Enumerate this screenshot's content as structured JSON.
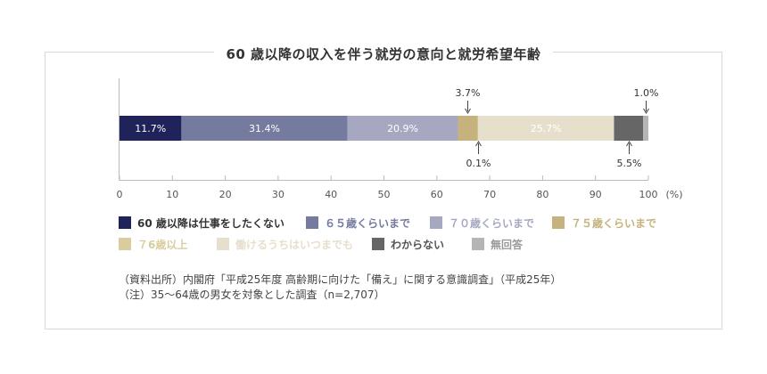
{
  "chart_data": {
    "type": "bar",
    "orientation": "horizontal-stacked-100",
    "title": "60 歳以降の収入を伴う就労の意向と就労希望年齢",
    "xlim": [
      0,
      100
    ],
    "x_ticks": [
      0,
      10,
      20,
      30,
      40,
      50,
      60,
      70,
      80,
      90,
      100
    ],
    "x_unit": "(%)",
    "series": [
      {
        "name": "60 歳以降は仕事をしたくない",
        "value": 11.7,
        "label": "11.7%",
        "color": "#20235a",
        "label_color": "#ffffff",
        "label_pos": "inside"
      },
      {
        "name": "６５歳くらいまで",
        "value": 31.4,
        "label": "31.4%",
        "color": "#757b9f",
        "label_color": "#ffffff",
        "label_pos": "inside"
      },
      {
        "name": "７０歳くらいまで",
        "value": 20.9,
        "label": "20.9%",
        "color": "#a6a8c2",
        "label_color": "#ffffff",
        "label_pos": "inside"
      },
      {
        "name": "７５歳くらいまで",
        "value": 3.7,
        "label": "3.7%",
        "color": "#c5b27c",
        "label_color": "#333333",
        "label_pos": "above"
      },
      {
        "name": "７6歳以上",
        "value": 0.1,
        "label": "0.1%",
        "color": "#d9cda0",
        "label_color": "#333333",
        "label_pos": "below"
      },
      {
        "name": "働けるうちはいつまでも",
        "value": 25.7,
        "label": "25.7%",
        "color": "#e6dfcb",
        "label_color": "#ffffff",
        "label_pos": "inside"
      },
      {
        "name": "わからない",
        "value": 5.5,
        "label": "5.5%",
        "color": "#666666",
        "label_color": "#333333",
        "label_pos": "below"
      },
      {
        "name": "無回答",
        "value": 1.0,
        "label": "1.0%",
        "color": "#b5b5b5",
        "label_color": "#333333",
        "label_pos": "above"
      }
    ]
  },
  "legend": {
    "items": [
      {
        "label": "60 歳以降は仕事をしたくない",
        "color": "#20235a",
        "text_color": "#333333"
      },
      {
        "label": "６５歳くらいまで",
        "color": "#757b9f",
        "text_color": "#757b9f"
      },
      {
        "label": "７０歳くらいまで",
        "color": "#a6a8c2",
        "text_color": "#a6a8c2"
      },
      {
        "label": "７５歳くらいまで",
        "color": "#c5b27c",
        "text_color": "#c5b27c"
      },
      {
        "label": "７6歳以上",
        "color": "#d9cda0",
        "text_color": "#d9cda0"
      },
      {
        "label": "働けるうちはいつまでも",
        "color": "#e6dfcb",
        "text_color": "#e6dfcb"
      },
      {
        "label": "わからない",
        "color": "#666666",
        "text_color": "#555555"
      },
      {
        "label": "無回答",
        "color": "#b5b5b5",
        "text_color": "#999999"
      }
    ]
  },
  "notes": {
    "source": "（資料出所）内閣府「平成25年度 高齢期に向けた「備え」に関する意識調査」（平成25年）",
    "note": "（注）35〜64歳の男女を対象とした調査（n=2,707）"
  }
}
